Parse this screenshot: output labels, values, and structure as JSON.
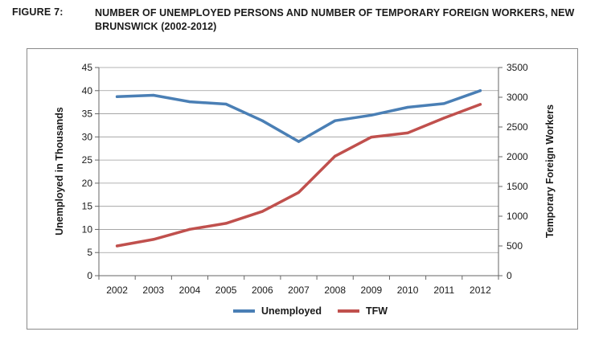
{
  "figure": {
    "label": "FIGURE 7:",
    "title": "NUMBER OF UNEMPLOYED PERSONS AND NUMBER OF TEMPORARY FOREIGN WORKERS, NEW BRUNSWICK (2002-2012)"
  },
  "chart_data": {
    "type": "line",
    "title": "NUMBER OF UNEMPLOYED PERSONS AND NUMBER OF TEMPORARY FOREIGN WORKERS, NEW BRUNSWICK (2002-2012)",
    "x": [
      "2002",
      "2003",
      "2004",
      "2005",
      "2006",
      "2007",
      "2008",
      "2009",
      "2010",
      "2011",
      "2012"
    ],
    "xlabel": "",
    "ylabel_left": "Unemployed in Thousands",
    "ylabel_right": "Temporary Foreign Workers",
    "ylim_left": [
      0,
      45
    ],
    "yticks_left": [
      0,
      5,
      10,
      15,
      20,
      25,
      30,
      35,
      40,
      45
    ],
    "ylim_right": [
      0,
      3500
    ],
    "yticks_right": [
      0,
      500,
      1000,
      1500,
      2000,
      2500,
      3000,
      3500
    ],
    "grid": true,
    "legend_position": "bottom",
    "series": [
      {
        "name": "Unemployed",
        "axis": "left",
        "color": "#4a7fb5",
        "values": [
          38.7,
          39.0,
          37.6,
          37.1,
          33.5,
          29.0,
          33.5,
          34.7,
          36.4,
          37.2,
          40.0
        ]
      },
      {
        "name": "TFW",
        "axis": "right",
        "color": "#c0504d",
        "values": [
          500,
          610,
          780,
          880,
          1080,
          1400,
          2010,
          2330,
          2400,
          2650,
          2880
        ]
      }
    ]
  }
}
